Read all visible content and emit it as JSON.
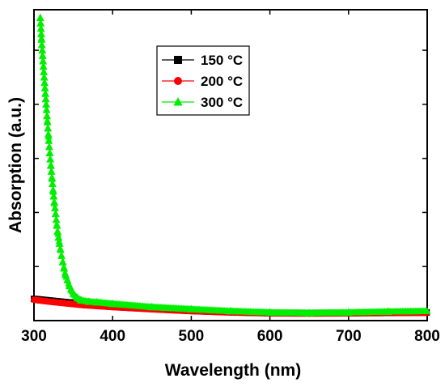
{
  "chart_data": {
    "type": "scatter",
    "xlabel": "Wavelength (nm)",
    "ylabel": "Absorption (a.u.)",
    "xlim": [
      300,
      800
    ],
    "ylim": [
      0,
      1.15
    ],
    "x_ticks": [
      300,
      400,
      500,
      600,
      700,
      800
    ],
    "y_ticks": [
      0,
      0.2,
      0.4,
      0.6,
      0.8,
      1.0
    ],
    "y_tick_labels_shown": false,
    "grid": false,
    "legend_position": "top-center",
    "series": [
      {
        "name": "150 °C",
        "color": "#000000",
        "marker": "square",
        "x": [
          300,
          320,
          340,
          360,
          380,
          400,
          450,
          500,
          550,
          600,
          650,
          700,
          750,
          800
        ],
        "y": [
          0.08,
          0.074,
          0.068,
          0.063,
          0.058,
          0.054,
          0.045,
          0.038,
          0.032,
          0.028,
          0.027,
          0.028,
          0.03,
          0.03
        ]
      },
      {
        "name": "200 °C",
        "color": "#ff0000",
        "marker": "circle",
        "x": [
          300,
          320,
          340,
          360,
          380,
          400,
          450,
          500,
          550,
          600,
          650,
          700,
          750,
          800
        ],
        "y": [
          0.077,
          0.07,
          0.064,
          0.058,
          0.054,
          0.05,
          0.042,
          0.035,
          0.03,
          0.027,
          0.026,
          0.027,
          0.028,
          0.029
        ]
      },
      {
        "name": "300 °C",
        "color": "#00ee00",
        "marker": "triangle",
        "x": [
          308,
          310,
          313,
          316,
          320,
          325,
          330,
          335,
          340,
          345,
          350,
          355,
          360,
          370,
          380,
          400,
          450,
          500,
          550,
          600,
          650,
          700,
          750,
          800
        ],
        "y": [
          1.12,
          1.02,
          0.9,
          0.78,
          0.62,
          0.46,
          0.33,
          0.24,
          0.17,
          0.13,
          0.1,
          0.085,
          0.075,
          0.07,
          0.068,
          0.062,
          0.05,
          0.042,
          0.035,
          0.03,
          0.028,
          0.03,
          0.033,
          0.035
        ]
      }
    ]
  }
}
